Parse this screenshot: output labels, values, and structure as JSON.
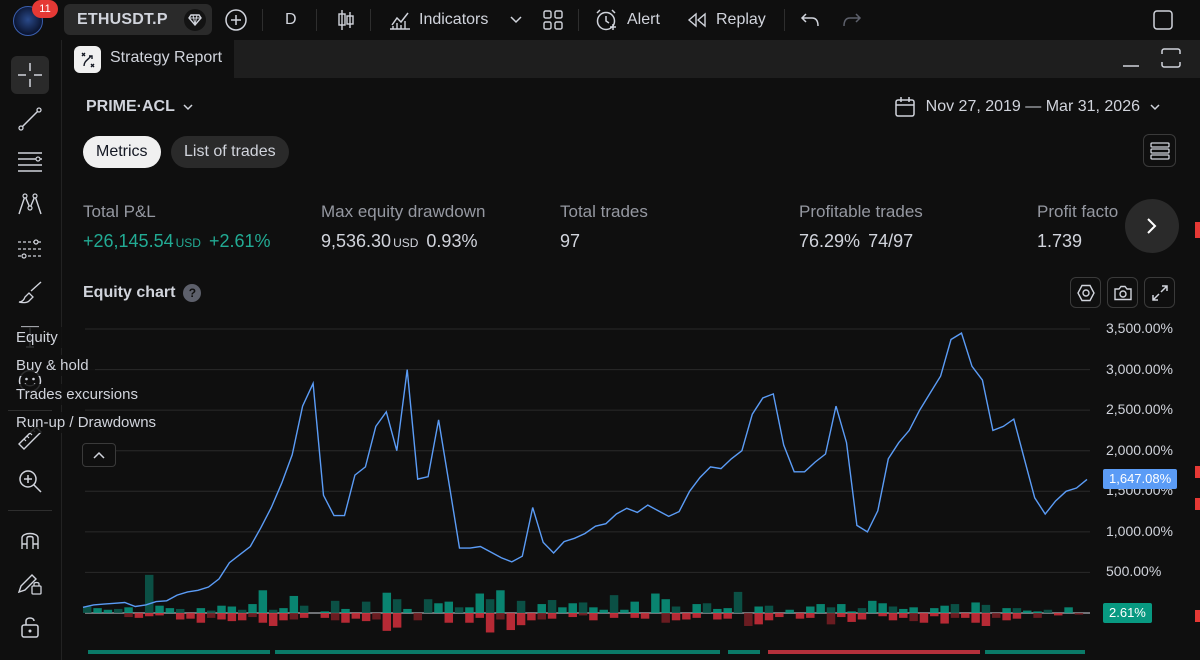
{
  "topbar": {
    "badge_count": "11",
    "symbol": "ETHUSDT.P",
    "interval": "D",
    "indicators_label": "Indicators",
    "alert_label": "Alert",
    "replay_label": "Replay"
  },
  "report": {
    "tab_title": "Strategy Report",
    "strategy_name": "PRIME·ACL",
    "date_range": "Nov 27, 2019 — Mar 31, 2026",
    "tabs": [
      {
        "label": "Metrics",
        "active": true
      },
      {
        "label": "List of trades",
        "active": false
      }
    ]
  },
  "metrics": [
    {
      "label": "Total P&L",
      "value": "+26,145.54",
      "unit": "USD",
      "extra": "+2.61%",
      "positive": true
    },
    {
      "label": "Max equity drawdown",
      "value": "9,536.30",
      "unit": "USD",
      "extra": "0.93%",
      "positive": false
    },
    {
      "label": "Total trades",
      "value": "97",
      "unit": "",
      "extra": "",
      "positive": false
    },
    {
      "label": "Profitable trades",
      "value": "76.29%",
      "unit": "",
      "extra": "74/97",
      "positive": false
    },
    {
      "label": "Profit facto",
      "value": "1.739",
      "unit": "",
      "extra": "",
      "positive": false
    }
  ],
  "equity": {
    "title": "Equity chart",
    "help": "?",
    "legend": [
      "Equity",
      "Buy & hold",
      "Trades excursions",
      "Run-up / Drawdowns"
    ]
  },
  "chart_data": {
    "type": "line",
    "series": [
      {
        "name": "Equity",
        "color": "#5b9cf6",
        "values": [
          70,
          100,
          110,
          120,
          130,
          80,
          100,
          140,
          150,
          220,
          260,
          280,
          320,
          420,
          620,
          720,
          820,
          1050,
          1300,
          1600,
          1950,
          2550,
          2830,
          1450,
          1200,
          1200,
          1700,
          1800,
          2300,
          2480,
          2000,
          3000,
          1650,
          1680,
          2380,
          1600,
          800,
          800,
          820,
          750,
          680,
          630,
          700,
          1300,
          870,
          740,
          880,
          920,
          980,
          1070,
          1100,
          1220,
          1290,
          1240,
          1330,
          1260,
          1190,
          1250,
          1500,
          1670,
          1800,
          1780,
          1900,
          2000,
          2450,
          2650,
          2700,
          2070,
          1740,
          1740,
          1860,
          1960,
          2550,
          2100,
          1080,
          1000,
          1260,
          1900,
          2100,
          2250,
          2500,
          2710,
          2920,
          3370,
          3450,
          3040,
          2870,
          2250,
          2300,
          2390,
          1900,
          1420,
          1220,
          1380,
          1500,
          1540,
          1647.08
        ]
      }
    ],
    "ylim": [
      -500,
      3700
    ],
    "y_ticks": [
      "3,500.00%",
      "3,000.00%",
      "2,500.00%",
      "2,000.00%",
      "1,500.00%",
      "1,000.00%",
      "500.00%"
    ],
    "current_equity_label": "1,647.08%",
    "current_bh_label": "2.61%",
    "bars_up": [
      80,
      60,
      40,
      50,
      70,
      0,
      470,
      90,
      60,
      50,
      0,
      60,
      30,
      90,
      80,
      40,
      110,
      280,
      40,
      60,
      210,
      90,
      0,
      20,
      150,
      50,
      0,
      140,
      0,
      250,
      170,
      50,
      0,
      170,
      120,
      140,
      70,
      70,
      240,
      170,
      280,
      0,
      150,
      0,
      110,
      160,
      70,
      120,
      130,
      70,
      40,
      220,
      40,
      140,
      0,
      240,
      170,
      80,
      0,
      110,
      120,
      50,
      60,
      260,
      0,
      80,
      90,
      0,
      40,
      0,
      80,
      110,
      70,
      110,
      20,
      60,
      150,
      120,
      80,
      50,
      70,
      0,
      60,
      90,
      110,
      0,
      130,
      100,
      0,
      60,
      60,
      30,
      20,
      40,
      0,
      70,
      0
    ],
    "bars_down": [
      0,
      0,
      0,
      0,
      50,
      60,
      40,
      30,
      0,
      80,
      70,
      120,
      60,
      80,
      100,
      90,
      50,
      120,
      160,
      90,
      80,
      60,
      0,
      60,
      90,
      120,
      70,
      100,
      80,
      220,
      180,
      0,
      90,
      0,
      0,
      120,
      0,
      120,
      60,
      240,
      80,
      210,
      150,
      90,
      80,
      70,
      0,
      50,
      30,
      90,
      0,
      60,
      0,
      60,
      70,
      0,
      120,
      90,
      80,
      60,
      0,
      80,
      70,
      0,
      160,
      140,
      90,
      50,
      0,
      70,
      60,
      0,
      140,
      50,
      110,
      80,
      0,
      40,
      90,
      60,
      100,
      120,
      40,
      130,
      60,
      60,
      120,
      160,
      60,
      90,
      70,
      0,
      60,
      0,
      30,
      0,
      20
    ]
  },
  "colors": {
    "equity_line": "#5b9cf6",
    "bar_up": "#089981",
    "bar_down": "#f23645",
    "positive_text": "#22ab94"
  }
}
